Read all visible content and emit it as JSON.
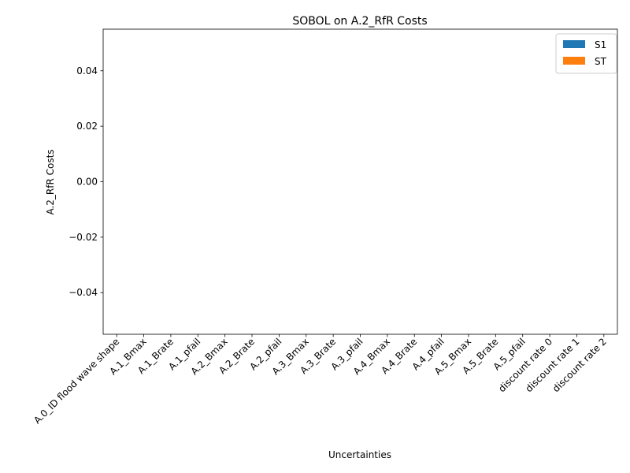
{
  "chart_data": {
    "type": "bar",
    "title": "SOBOL on A.2_RfR Costs",
    "xlabel": "Uncertainties",
    "ylabel": "A.2_RfR Costs",
    "categories": [
      "A.0_ID flood wave shape",
      "A.1_Bmax",
      "A.1_Brate",
      "A.1_pfail",
      "A.2_Bmax",
      "A.2_Brate",
      "A.2_pfail",
      "A.3_Bmax",
      "A.3_Brate",
      "A.3_pfail",
      "A.4_Bmax",
      "A.4_Brate",
      "A.4_pfail",
      "A.5_Bmax",
      "A.5_Brate",
      "A.5_pfail",
      "discount rate 0",
      "discount rate 1",
      "discount rate 2"
    ],
    "series": [
      {
        "name": "S1",
        "color": "#1f77b4",
        "values": [
          0,
          0,
          0,
          0,
          0,
          0,
          0,
          0,
          0,
          0,
          0,
          0,
          0,
          0,
          0,
          0,
          0,
          0,
          0
        ]
      },
      {
        "name": "ST",
        "color": "#ff7f0e",
        "values": [
          0,
          0,
          0,
          0,
          0,
          0,
          0,
          0,
          0,
          0,
          0,
          0,
          0,
          0,
          0,
          0,
          0,
          0,
          0
        ]
      }
    ],
    "ylim": [
      -0.055,
      0.055
    ],
    "yticks": [
      "0.04",
      "0.02",
      "0.00",
      "−0.02",
      "−0.04"
    ],
    "ytick_values": [
      0.04,
      0.02,
      0.0,
      -0.02,
      -0.04
    ],
    "legend_position": "top-right",
    "grid": false
  }
}
